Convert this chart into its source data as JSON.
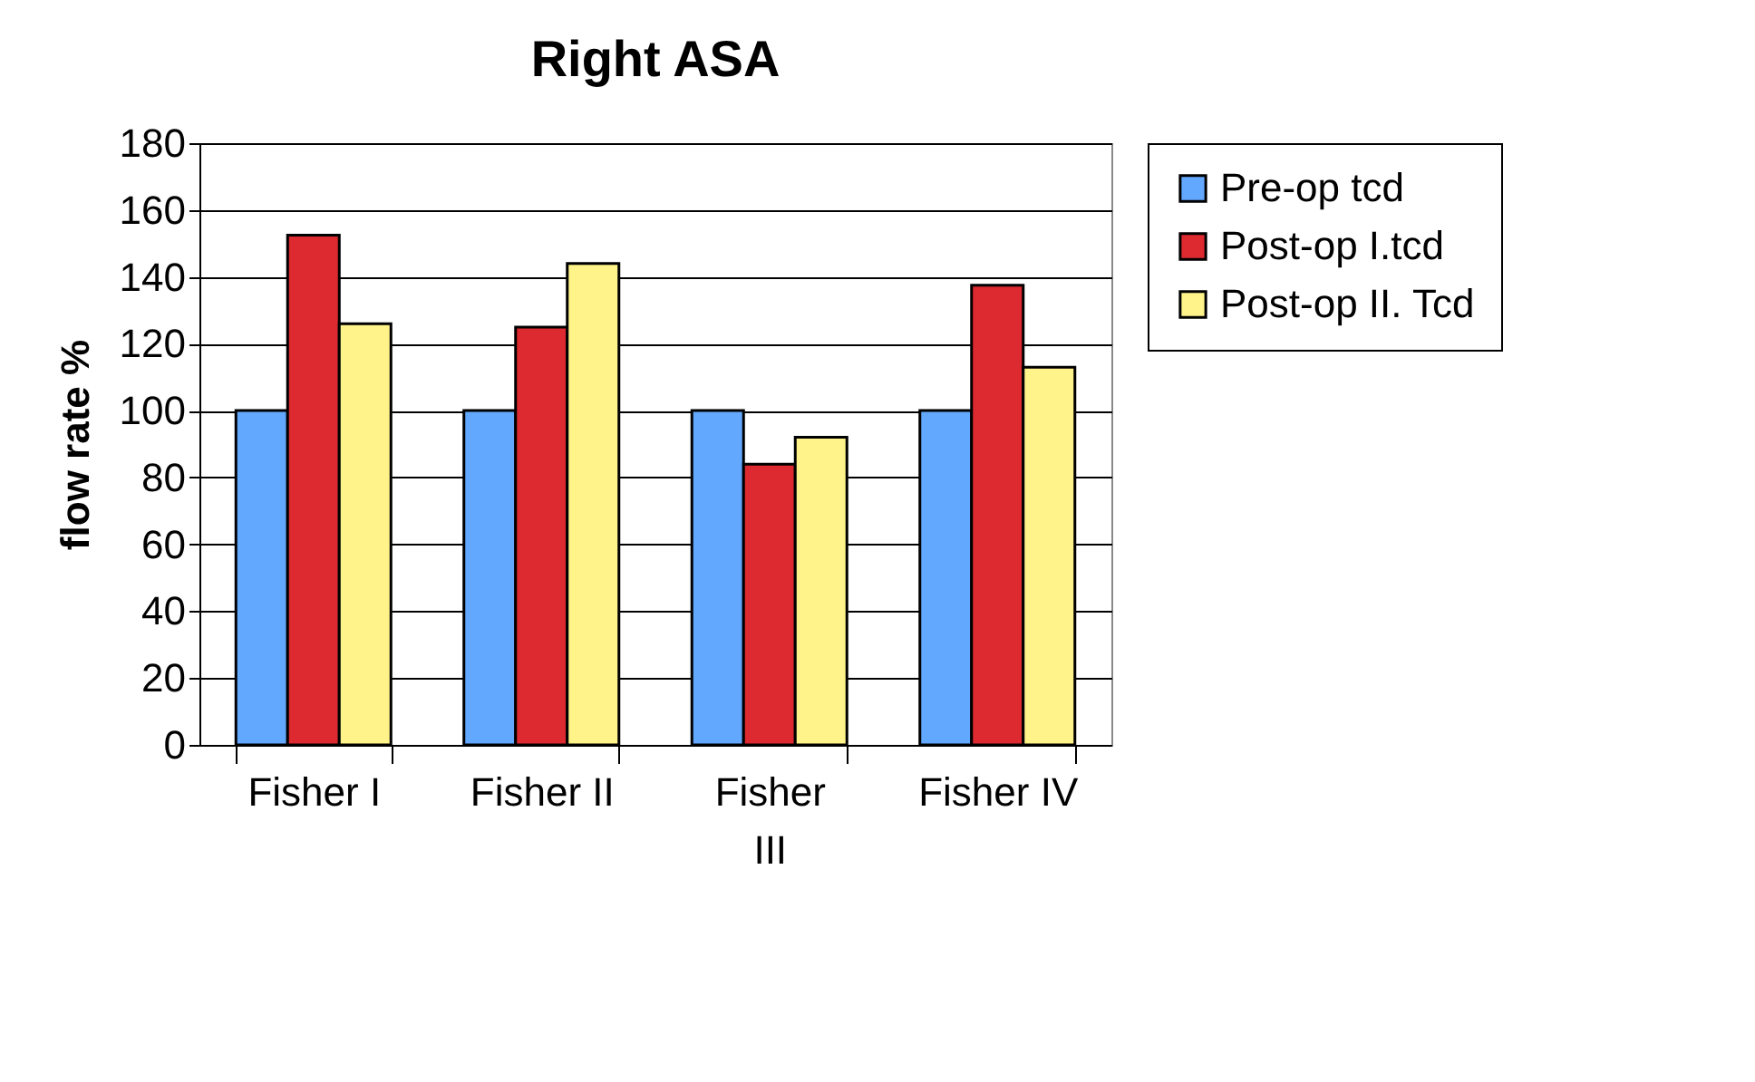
{
  "chart_data": {
    "type": "bar",
    "title": "Right ASA",
    "ylabel": "flow rate %",
    "categories": [
      "Fisher I",
      "Fisher II",
      "Fisher III",
      "Fisher IV"
    ],
    "series": [
      {
        "name": "Pre-op tcd",
        "color": "#63a8ff",
        "values": [
          100,
          100,
          100,
          100
        ]
      },
      {
        "name": "Post-op I.tcd",
        "color": "#dc2a30",
        "values": [
          152.5,
          125,
          84,
          137.5
        ]
      },
      {
        "name": "Post-op II. Tcd",
        "color": "#fff38a",
        "values": [
          126,
          144,
          92,
          113
        ]
      }
    ],
    "ylim": [
      0,
      180
    ],
    "yticks": [
      0,
      20,
      40,
      60,
      80,
      100,
      120,
      140,
      160,
      180
    ],
    "grid": "y",
    "legend": "right"
  }
}
